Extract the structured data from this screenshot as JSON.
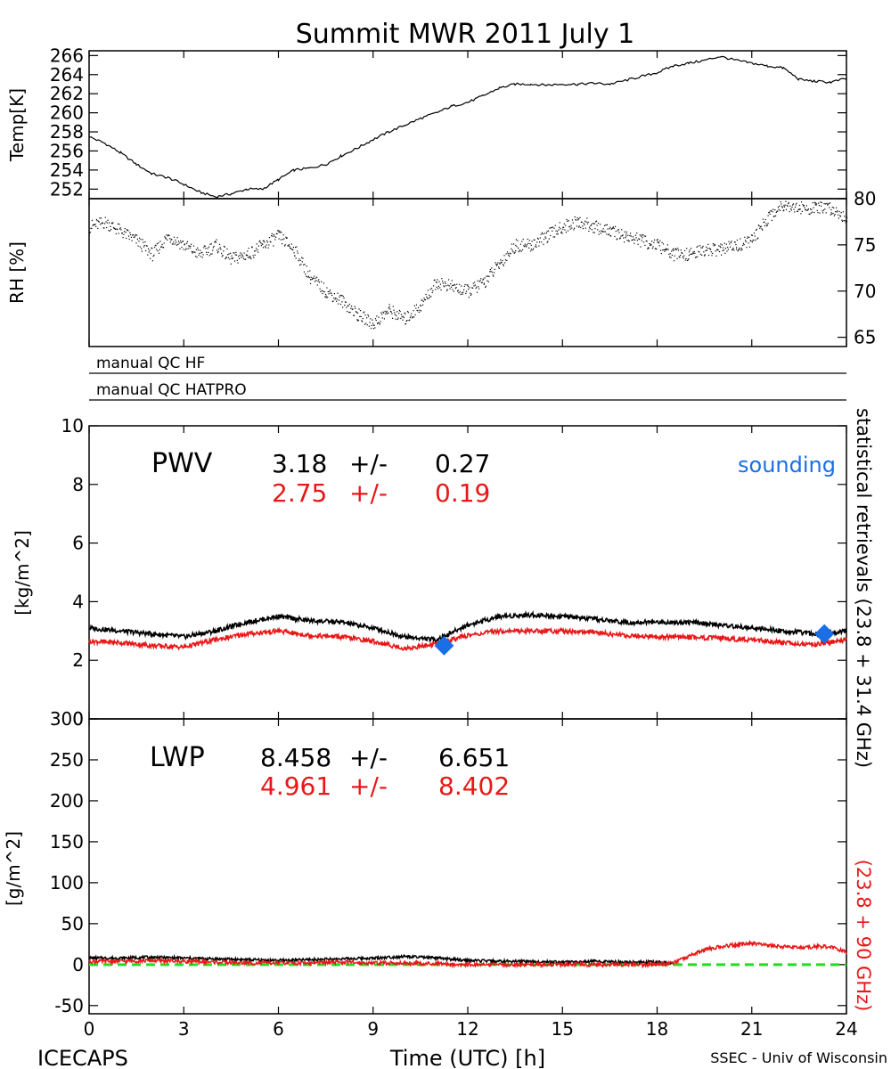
{
  "title": "Summit MWR 2011 July  1",
  "footer": {
    "left": "ICECAPS",
    "center": "Time (UTC) [h]",
    "right": "SSEC - Univ of Wisconsin"
  },
  "side_label": {
    "part1": "statistical retrievals (23.8 + 31.4 GHz)",
    "part2": "(23.8 + 90 GHz)"
  },
  "qc": {
    "hf": "manual QC HF",
    "hatpro": "manual QC HATPRO"
  },
  "colors": {
    "black_series": "#000000",
    "red_series": "#e81818",
    "sounding": "#1a6ee6",
    "zero_line": "#22dd22"
  },
  "chart_data": [
    {
      "type": "line",
      "panel": "temperature",
      "ylabel": "Temp[K]",
      "ylim": [
        251,
        266.5
      ],
      "yticks": [
        252,
        254,
        256,
        258,
        260,
        262,
        264,
        266
      ],
      "xlim": [
        0,
        24
      ],
      "series": [
        {
          "x": [
            0,
            0.5,
            1,
            1.5,
            2,
            2.5,
            3,
            3.5,
            4,
            4.5,
            5,
            5.5,
            6,
            6.5,
            7,
            7.5,
            8,
            8.5,
            9,
            9.5,
            10,
            10.5,
            11,
            11.5,
            12,
            12.5,
            13,
            13.5,
            14,
            14.5,
            15,
            15.5,
            16,
            16.5,
            17,
            17.5,
            18,
            18.5,
            19,
            19.5,
            20,
            20.5,
            21,
            21.5,
            22,
            22.5,
            23,
            23.5,
            24
          ],
          "values": [
            257.5,
            256.8,
            255.8,
            254.6,
            253.6,
            253.2,
            252.5,
            251.7,
            251.2,
            251.5,
            252.0,
            252.0,
            253.0,
            254.0,
            254.2,
            254.6,
            255.5,
            256.3,
            257.2,
            258.0,
            258.7,
            259.4,
            260.0,
            260.7,
            261.1,
            261.8,
            262.6,
            263.0,
            263.0,
            262.9,
            263.0,
            263.0,
            263.1,
            263.0,
            263.4,
            263.8,
            264.2,
            264.9,
            265.2,
            265.5,
            265.9,
            265.5,
            265.2,
            264.9,
            264.7,
            263.5,
            263.3,
            263.2,
            263.6
          ]
        }
      ]
    },
    {
      "type": "scatter",
      "panel": "relative-humidity",
      "ylabel": "RH [%]",
      "ylim": [
        64,
        80
      ],
      "yticks": [
        65,
        70,
        75,
        80
      ],
      "xlim": [
        0,
        24
      ],
      "series": [
        {
          "x": [
            0,
            0.5,
            1,
            1.5,
            2,
            2.5,
            3,
            3.5,
            4,
            4.5,
            5,
            5.5,
            6,
            6.5,
            7,
            7.5,
            8,
            8.5,
            9,
            9.5,
            10,
            10.5,
            11,
            11.5,
            12,
            12.5,
            13,
            13.5,
            14,
            14.5,
            15,
            15.5,
            16,
            16.5,
            17,
            17.5,
            18,
            18.5,
            19,
            19.5,
            20,
            20.5,
            21,
            21.5,
            22,
            22.5,
            23,
            23.5,
            24
          ],
          "values": [
            77,
            77.5,
            76.5,
            75.5,
            74,
            76,
            75,
            74,
            75,
            73.5,
            74,
            75,
            76,
            74.5,
            71.5,
            70,
            69,
            67.5,
            66.5,
            68,
            67,
            68.5,
            71,
            70.5,
            70,
            71,
            73,
            75,
            75,
            76,
            77,
            77.5,
            77,
            76.5,
            76,
            75.5,
            75,
            74,
            74,
            74.5,
            74.5,
            75,
            75.5,
            78,
            79.5,
            79,
            79,
            79,
            78
          ]
        }
      ]
    },
    {
      "type": "line",
      "panel": "pwv",
      "ylabel": "[kg/m^2]",
      "ylim": [
        0,
        10
      ],
      "yticks": [
        0,
        2,
        4,
        6,
        8,
        10
      ],
      "xlim": [
        0,
        24
      ],
      "annotation": "PWV",
      "stats": [
        {
          "mean": "3.18",
          "pm": "+/-",
          "err": "0.27"
        },
        {
          "mean": "2.75",
          "pm": "+/-",
          "err": "0.19"
        }
      ],
      "legend": "sounding",
      "series": [
        {
          "x": [
            0,
            1,
            2,
            3,
            4,
            5,
            6,
            7,
            8,
            9,
            10,
            11,
            12,
            13,
            14,
            15,
            16,
            17,
            18,
            19,
            20,
            21,
            22,
            23,
            24
          ],
          "values": [
            3.1,
            3.0,
            2.9,
            2.8,
            3.0,
            3.3,
            3.5,
            3.35,
            3.3,
            3.1,
            2.8,
            2.7,
            3.2,
            3.5,
            3.55,
            3.5,
            3.4,
            3.3,
            3.3,
            3.3,
            3.2,
            3.1,
            3.0,
            2.9,
            3.0
          ]
        },
        {
          "x": [
            0,
            1,
            2,
            3,
            4,
            5,
            6,
            7,
            8,
            9,
            10,
            11,
            12,
            13,
            14,
            15,
            16,
            17,
            18,
            19,
            20,
            21,
            22,
            23,
            24
          ],
          "values": [
            2.65,
            2.6,
            2.5,
            2.45,
            2.7,
            2.9,
            3.0,
            2.85,
            2.8,
            2.65,
            2.4,
            2.55,
            2.85,
            3.0,
            3.0,
            3.0,
            2.95,
            2.85,
            2.8,
            2.8,
            2.75,
            2.7,
            2.6,
            2.55,
            2.7
          ]
        }
      ],
      "sounding_points": [
        {
          "x": 11.25,
          "y": 2.5
        },
        {
          "x": 23.3,
          "y": 2.9
        }
      ]
    },
    {
      "type": "line",
      "panel": "lwp",
      "ylabel": "[g/m^2]",
      "ylim": [
        -60,
        300
      ],
      "yticks": [
        -50,
        0,
        50,
        100,
        150,
        200,
        250,
        300
      ],
      "xlim": [
        0,
        24
      ],
      "xticks": [
        0,
        3,
        6,
        9,
        12,
        15,
        18,
        21,
        24
      ],
      "annotation": "LWP",
      "stats": [
        {
          "mean": "8.458",
          "pm": "+/-",
          "err": "6.651"
        },
        {
          "mean": "4.961",
          "pm": "+/-",
          "err": "8.402"
        }
      ],
      "series": [
        {
          "x": [
            0,
            1,
            2,
            3,
            4,
            5,
            6,
            7,
            8,
            9,
            10,
            11,
            12,
            13,
            14,
            15,
            16,
            17,
            18,
            18.5
          ],
          "values": [
            8,
            8,
            9,
            8,
            7,
            6,
            5,
            6,
            7,
            8,
            10,
            8,
            5,
            4,
            4,
            3,
            4,
            3,
            3,
            2
          ]
        },
        {
          "x": [
            0,
            1,
            2,
            3,
            4,
            5,
            6,
            7,
            8,
            9,
            10,
            11,
            12,
            13,
            14,
            15,
            16,
            17,
            18,
            18.5,
            19,
            19.5,
            20,
            20.5,
            21,
            21.5,
            22,
            22.5,
            23,
            23.5,
            24
          ],
          "values": [
            4,
            4,
            5,
            4,
            3,
            2,
            2,
            2,
            3,
            2,
            2,
            1,
            0,
            0,
            0,
            0,
            0,
            0,
            0,
            2,
            10,
            18,
            22,
            24,
            26,
            23,
            22,
            21,
            22,
            22,
            15
          ]
        }
      ],
      "reference_line": 0
    }
  ]
}
